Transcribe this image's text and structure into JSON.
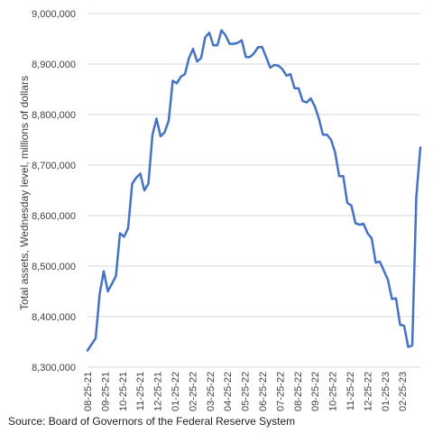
{
  "chart_data": {
    "type": "line",
    "xlabel": "",
    "ylabel": "Total assets, Wednesday level, millions of dollars",
    "ylim": [
      8300000,
      9000000
    ],
    "yticks": [
      "8,300,000",
      "8,400,000",
      "8,500,000",
      "8,600,000",
      "8,700,000",
      "8,800,000",
      "8,900,000",
      "9,000,000"
    ],
    "xticks": [
      "08-25-21",
      "09-25-21",
      "10-25-21",
      "11-25-21",
      "12-25-21",
      "01-25-22",
      "02-25-22",
      "03-25-22",
      "04-25-22",
      "05-25-22",
      "06-25-22",
      "07-25-22",
      "08-25-22",
      "09-25-22",
      "10-25-22",
      "11-25-22",
      "12-25-22",
      "01-25-23",
      "02-25-23"
    ],
    "grid": "horizontal",
    "series": [
      {
        "color": "#4472c4",
        "values": [
          8333000,
          8345000,
          8357000,
          8445000,
          8490000,
          8450000,
          8465000,
          8480000,
          8565000,
          8558000,
          8575000,
          8663000,
          8675000,
          8683000,
          8650000,
          8663000,
          8760000,
          8792000,
          8757000,
          8765000,
          8788000,
          8867000,
          8862000,
          8875000,
          8880000,
          8912000,
          8930000,
          8905000,
          8912000,
          8953000,
          8962000,
          8937000,
          8937000,
          8967000,
          8957000,
          8940000,
          8940000,
          8942000,
          8947000,
          8914000,
          8914000,
          8921000,
          8933000,
          8934000,
          8914000,
          8893000,
          8898000,
          8897000,
          8890000,
          8877000,
          8880000,
          8852000,
          8852000,
          8827000,
          8824000,
          8832000,
          8816000,
          8792000,
          8760000,
          8760000,
          8750000,
          8725000,
          8678000,
          8678000,
          8625000,
          8620000,
          8585000,
          8582000,
          8584000,
          8565000,
          8555000,
          8507000,
          8509000,
          8491000,
          8473000,
          8435000,
          8436000,
          8384000,
          8382000,
          8340000,
          8343000,
          8637000,
          8735000
        ]
      }
    ]
  },
  "source": "Source: Board of Governors of the Federal Reserve System"
}
